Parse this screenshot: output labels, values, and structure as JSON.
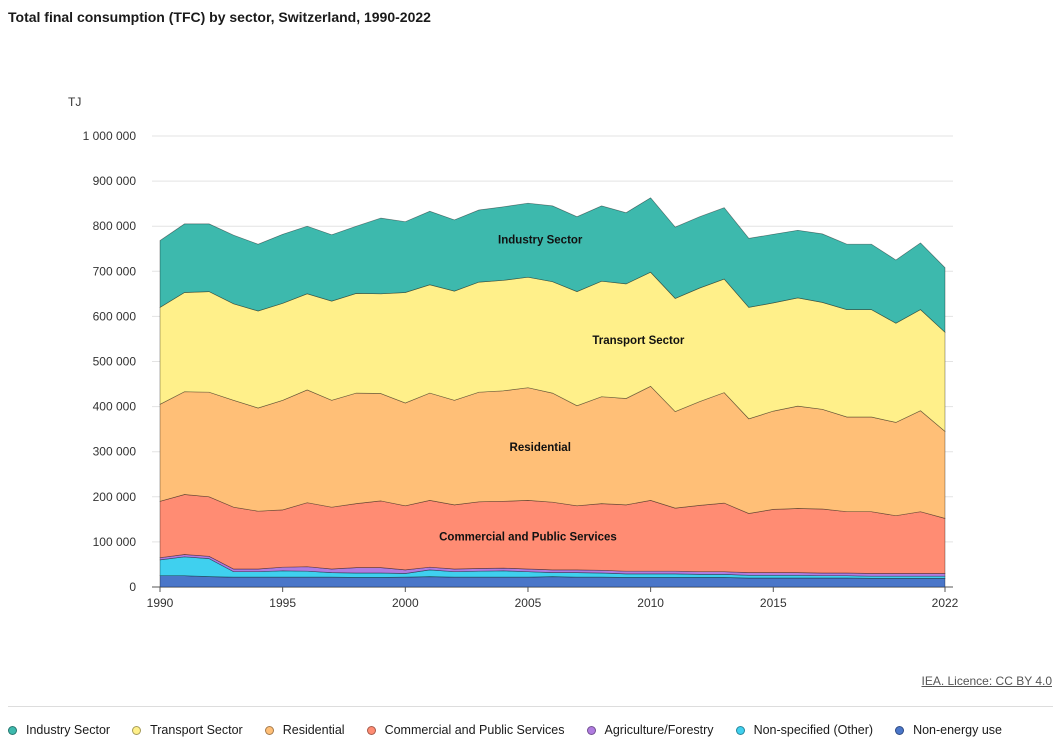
{
  "title": "Total final consumption (TFC) by sector, Switzerland, 1990-2022",
  "credit": "IEA. Licence: CC BY 4.0",
  "chart_data": {
    "type": "area",
    "stacked": true,
    "unit": "TJ",
    "x": [
      1990,
      1991,
      1992,
      1993,
      1994,
      1995,
      1996,
      1997,
      1998,
      1999,
      2000,
      2001,
      2002,
      2003,
      2004,
      2005,
      2006,
      2007,
      2008,
      2009,
      2010,
      2011,
      2012,
      2013,
      2014,
      2015,
      2016,
      2017,
      2018,
      2019,
      2020,
      2021,
      2022
    ],
    "x_tick_labels": [
      "1990",
      "1995",
      "2000",
      "2005",
      "2010",
      "2015",
      "2022"
    ],
    "y_ticks": [
      0,
      100000,
      200000,
      300000,
      400000,
      500000,
      600000,
      700000,
      800000,
      900000,
      1000000
    ],
    "y_tick_labels": [
      "0",
      "100 000",
      "200 000",
      "300 000",
      "400 000",
      "500 000",
      "600 000",
      "700 000",
      "800 000",
      "900 000",
      "1 000 000"
    ],
    "ylim": [
      0,
      1000000
    ],
    "series": [
      {
        "name": "Non-energy use",
        "color": "#4a76c9",
        "values": [
          25000,
          25000,
          23000,
          22000,
          22000,
          22000,
          22000,
          22000,
          21000,
          21000,
          22000,
          23000,
          22000,
          22000,
          22000,
          22000,
          23000,
          22000,
          22000,
          21000,
          21000,
          21000,
          21000,
          21000,
          20000,
          20000,
          20000,
          20000,
          20000,
          19000,
          19000,
          19000,
          19000
        ]
      },
      {
        "name": "Non-specified (Other)",
        "color": "#3fd0ef",
        "values": [
          35000,
          42000,
          40000,
          12000,
          12000,
          14000,
          13000,
          10000,
          10000,
          10000,
          8000,
          15000,
          12000,
          13000,
          14000,
          12000,
          9000,
          10000,
          9000,
          8000,
          8000,
          8000,
          7000,
          7000,
          6000,
          6000,
          6000,
          5000,
          5000,
          5000,
          5000,
          5000,
          5000
        ]
      },
      {
        "name": "Agriculture/Forestry",
        "color": "#b07ce0",
        "values": [
          5000,
          5000,
          5000,
          6000,
          6000,
          8000,
          10000,
          8000,
          12000,
          12000,
          8000,
          6000,
          6000,
          6000,
          6000,
          6000,
          6000,
          6000,
          6000,
          6000,
          6000,
          6000,
          6000,
          6000,
          6000,
          6000,
          6000,
          6000,
          6000,
          6000,
          6000,
          6000,
          6000
        ]
      },
      {
        "name": "Commercial and Public Services",
        "color": "#ff8c73",
        "values": [
          125000,
          133000,
          132000,
          137000,
          128000,
          127000,
          142000,
          137000,
          142000,
          148000,
          142000,
          148000,
          142000,
          148000,
          148000,
          152000,
          150000,
          142000,
          148000,
          147000,
          157000,
          140000,
          147000,
          152000,
          131000,
          140000,
          142000,
          142000,
          136000,
          137000,
          128000,
          137000,
          122000
        ]
      },
      {
        "name": "Residential",
        "color": "#ffbf77",
        "values": [
          215000,
          228000,
          232000,
          237000,
          229000,
          243000,
          250000,
          237000,
          245000,
          238000,
          228000,
          238000,
          232000,
          243000,
          245000,
          250000,
          242000,
          222000,
          237000,
          236000,
          253000,
          214000,
          230000,
          245000,
          210000,
          218000,
          227000,
          221000,
          210000,
          210000,
          207000,
          224000,
          193000
        ]
      },
      {
        "name": "Transport Sector",
        "color": "#fff08a",
        "values": [
          215000,
          220000,
          223000,
          214000,
          215000,
          215000,
          213000,
          220000,
          221000,
          221000,
          245000,
          240000,
          242000,
          244000,
          245000,
          245000,
          247000,
          253000,
          256000,
          254000,
          253000,
          251000,
          252000,
          252000,
          247000,
          240000,
          240000,
          237000,
          238000,
          238000,
          220000,
          224000,
          220000
        ]
      },
      {
        "name": "Industry Sector",
        "color": "#3db9ad",
        "values": [
          148000,
          152000,
          150000,
          152000,
          148000,
          153000,
          150000,
          147000,
          149000,
          168000,
          157000,
          163000,
          158000,
          160000,
          163000,
          164000,
          168000,
          166000,
          167000,
          158000,
          165000,
          158000,
          158000,
          158000,
          153000,
          152000,
          150000,
          152000,
          145000,
          145000,
          140000,
          148000,
          143000
        ]
      }
    ],
    "annotations": [
      {
        "text": "Industry Sector",
        "x": 2005.5,
        "y": 770000
      },
      {
        "text": "Transport Sector",
        "x": 2009.5,
        "y": 548000
      },
      {
        "text": "Residential",
        "x": 2005.5,
        "y": 310000
      },
      {
        "text": "Commercial and Public Services",
        "x": 2005,
        "y": 112000
      }
    ]
  },
  "legend": [
    {
      "label": "Industry Sector",
      "color": "#3db9ad"
    },
    {
      "label": "Transport Sector",
      "color": "#fff08a"
    },
    {
      "label": "Residential",
      "color": "#ffbf77"
    },
    {
      "label": "Commercial and Public Services",
      "color": "#ff8c73"
    },
    {
      "label": "Agriculture/Forestry",
      "color": "#b07ce0"
    },
    {
      "label": "Non-specified (Other)",
      "color": "#3fd0ef"
    },
    {
      "label": "Non-energy use",
      "color": "#4a76c9"
    }
  ]
}
